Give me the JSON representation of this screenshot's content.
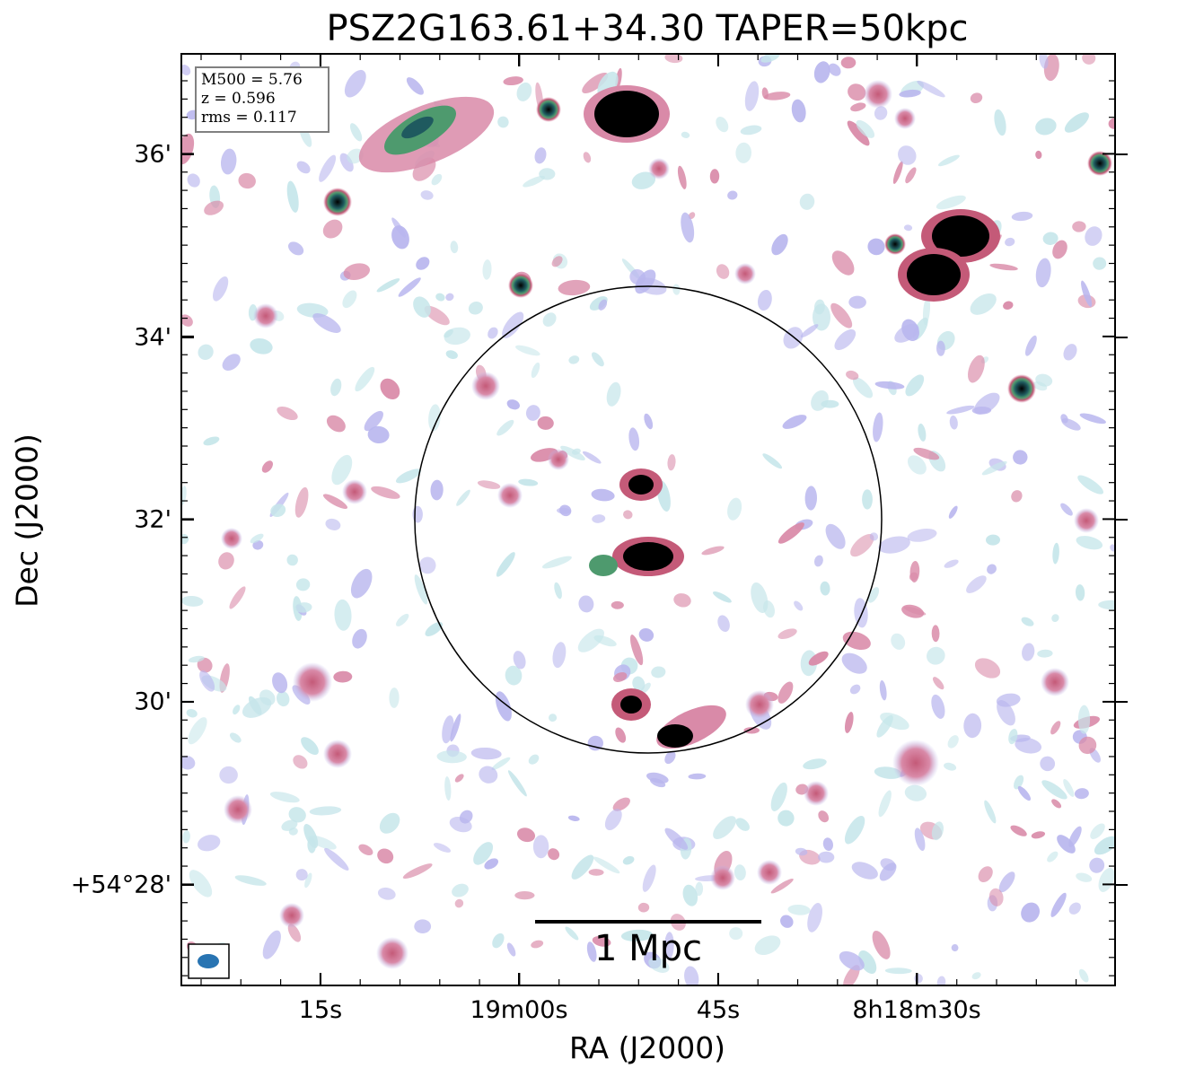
{
  "title": "PSZ2G163.61+34.30 TAPER=50kpc",
  "xaxis": {
    "label": "RA (J2000)",
    "ticks": [
      "15s",
      "19m00s",
      "45s",
      "8h18m30s"
    ]
  },
  "yaxis": {
    "label": "Dec (J2000)",
    "ticks": [
      "36'",
      "34'",
      "32'",
      "30'",
      "+54°28'"
    ]
  },
  "info": {
    "m500": "M500 = 5.76",
    "z": "z = 0.596",
    "rms": "rms = 0.117"
  },
  "scalebar": {
    "label": "1 Mpc"
  },
  "colors": {
    "faint": "#c6e6ea",
    "lavender": "#b9b6ee",
    "pink": "#d98aa8",
    "rose": "#c45a78",
    "green": "#4e9a6e",
    "teal": "#1f5a5f",
    "core": "#000000",
    "beam": "#2874b2"
  }
}
